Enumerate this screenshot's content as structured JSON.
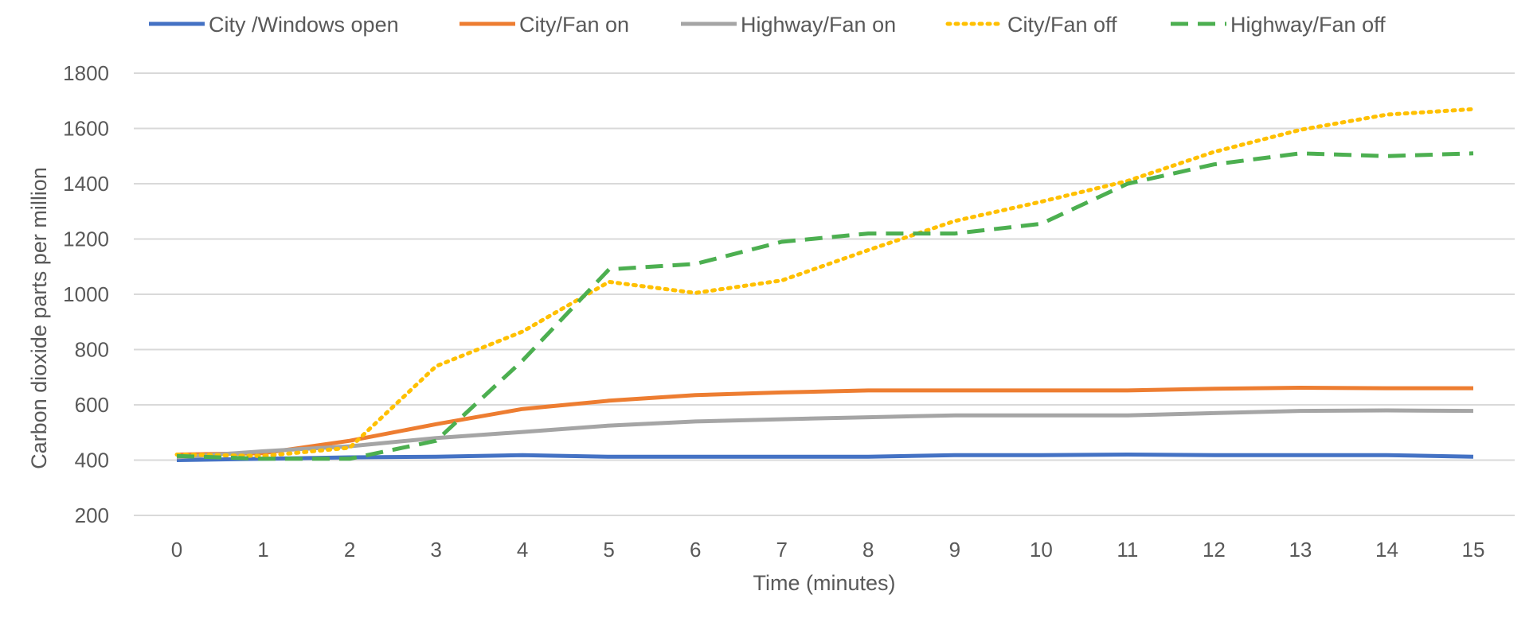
{
  "chart_data": {
    "type": "line",
    "title": "",
    "xlabel": "Time (minutes)",
    "ylabel": "Carbon dioxide parts per million",
    "x": [
      0,
      1,
      2,
      3,
      4,
      5,
      6,
      7,
      8,
      9,
      10,
      11,
      12,
      13,
      14,
      15
    ],
    "ylim": [
      200,
      1800
    ],
    "yticks": [
      200,
      400,
      600,
      800,
      1000,
      1200,
      1400,
      1600,
      1800
    ],
    "grid": true,
    "legend_position": "top",
    "series": [
      {
        "name": "City /Windows open",
        "color": "#4472c4",
        "style": "solid",
        "values": [
          400,
          405,
          410,
          412,
          418,
          412,
          412,
          412,
          412,
          418,
          418,
          420,
          418,
          418,
          418,
          412
        ]
      },
      {
        "name": "City/Fan on",
        "color": "#ed7d31",
        "style": "solid",
        "values": [
          420,
          425,
          470,
          530,
          585,
          615,
          635,
          645,
          652,
          652,
          652,
          652,
          658,
          662,
          660,
          660
        ]
      },
      {
        "name": "Highway/Fan on",
        "color": "#a5a5a5",
        "style": "solid",
        "values": [
          410,
          432,
          450,
          480,
          502,
          525,
          540,
          548,
          555,
          562,
          562,
          562,
          570,
          578,
          580,
          578
        ]
      },
      {
        "name": "City/Fan off",
        "color": "#ffc000",
        "style": "dotted",
        "values": [
          420,
          415,
          445,
          740,
          865,
          1045,
          1005,
          1050,
          1160,
          1265,
          1335,
          1410,
          1515,
          1595,
          1650,
          1670
        ]
      },
      {
        "name": "Highway/Fan off",
        "color": "#4caf50",
        "style": "dashed",
        "values": [
          415,
          405,
          405,
          470,
          760,
          1090,
          1110,
          1190,
          1220,
          1220,
          1255,
          1400,
          1470,
          1510,
          1500,
          1510
        ]
      }
    ]
  }
}
